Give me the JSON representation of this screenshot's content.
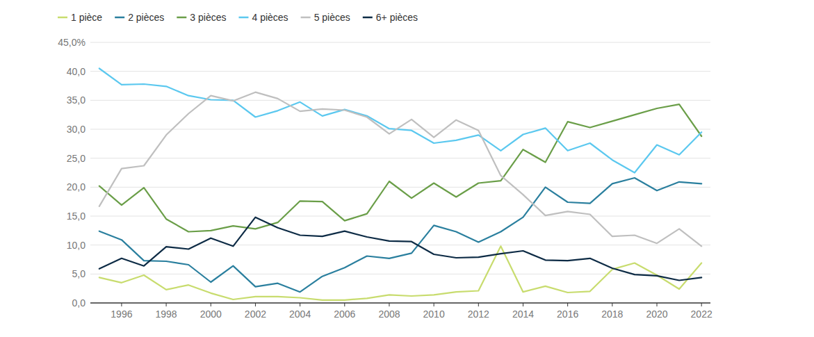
{
  "chart_data": {
    "type": "line",
    "x": [
      1995,
      1996,
      1997,
      1998,
      1999,
      2000,
      2001,
      2002,
      2003,
      2004,
      2005,
      2006,
      2007,
      2008,
      2009,
      2010,
      2011,
      2012,
      2013,
      2014,
      2015,
      2016,
      2017,
      2018,
      2019,
      2020,
      2021,
      2022
    ],
    "xlim": [
      1994.6,
      2022.4
    ],
    "xticks": [
      1996,
      1998,
      2000,
      2002,
      2004,
      2006,
      2008,
      2010,
      2012,
      2014,
      2016,
      2018,
      2020,
      2022
    ],
    "ylim": [
      0,
      45
    ],
    "yticks": [
      {
        "value": 0,
        "label": "0,0"
      },
      {
        "value": 5,
        "label": "5,0"
      },
      {
        "value": 10,
        "label": "10,0"
      },
      {
        "value": 15,
        "label": "15,0"
      },
      {
        "value": 20,
        "label": "20,0"
      },
      {
        "value": 25,
        "label": "25,0"
      },
      {
        "value": 30,
        "label": "30,0"
      },
      {
        "value": 35,
        "label": "35,0"
      },
      {
        "value": 40,
        "label": "40,0"
      },
      {
        "value": 45,
        "label": "45,0%"
      }
    ],
    "grid": true,
    "legend": "top-left",
    "series": [
      {
        "name": "1 pièce",
        "color": "#c8dc6e",
        "values": [
          4.4,
          3.5,
          4.8,
          2.3,
          3.1,
          1.7,
          0.6,
          1.1,
          1.1,
          0.9,
          0.5,
          0.5,
          0.8,
          1.4,
          1.2,
          1.4,
          1.9,
          2.1,
          9.8,
          1.9,
          2.9,
          1.8,
          2.0,
          5.8,
          6.9,
          4.8,
          2.4,
          6.9
        ]
      },
      {
        "name": "2 pièces",
        "color": "#2a7f9e",
        "values": [
          12.4,
          10.9,
          7.3,
          7.2,
          6.6,
          3.6,
          6.4,
          2.8,
          3.4,
          1.9,
          4.6,
          6.1,
          8.1,
          7.7,
          8.6,
          13.4,
          12.3,
          10.5,
          12.3,
          14.8,
          20.0,
          17.4,
          17.2,
          20.6,
          21.6,
          19.4,
          20.9,
          20.6
        ]
      },
      {
        "name": "3 pièces",
        "color": "#6a9e48",
        "values": [
          20.2,
          16.9,
          19.9,
          14.5,
          12.3,
          12.5,
          13.3,
          12.8,
          13.9,
          17.6,
          17.5,
          14.2,
          15.4,
          21.0,
          18.1,
          20.7,
          18.3,
          20.7,
          21.1,
          26.5,
          24.3,
          31.3,
          30.3,
          31.4,
          32.5,
          33.6,
          34.3,
          28.8
        ]
      },
      {
        "name": "4 pièces",
        "color": "#5bc8ef",
        "values": [
          40.5,
          37.7,
          37.8,
          37.4,
          35.8,
          35.1,
          35.0,
          32.1,
          33.2,
          34.7,
          32.3,
          33.4,
          32.3,
          30.1,
          29.8,
          27.6,
          28.1,
          29.0,
          26.3,
          29.1,
          30.2,
          26.3,
          27.6,
          24.7,
          22.5,
          27.3,
          25.6,
          29.5
        ]
      },
      {
        "name": "5 pièces",
        "color": "#bfbfbf",
        "values": [
          16.7,
          23.2,
          23.7,
          29.0,
          32.7,
          35.8,
          34.9,
          36.4,
          35.3,
          33.1,
          33.5,
          33.3,
          32.1,
          29.2,
          31.7,
          28.6,
          31.6,
          29.8,
          22.0,
          18.7,
          15.1,
          15.8,
          15.3,
          11.5,
          11.7,
          10.3,
          12.8,
          9.8
        ]
      },
      {
        "name": "6+ pièces",
        "color": "#0d2b45",
        "values": [
          5.9,
          7.7,
          6.4,
          9.7,
          9.3,
          11.2,
          9.8,
          14.8,
          13.0,
          11.7,
          11.5,
          12.4,
          11.4,
          10.7,
          10.6,
          8.4,
          7.8,
          7.9,
          8.5,
          9.0,
          7.4,
          7.3,
          7.7,
          6.0,
          4.9,
          4.7,
          3.9,
          4.4
        ]
      }
    ]
  }
}
